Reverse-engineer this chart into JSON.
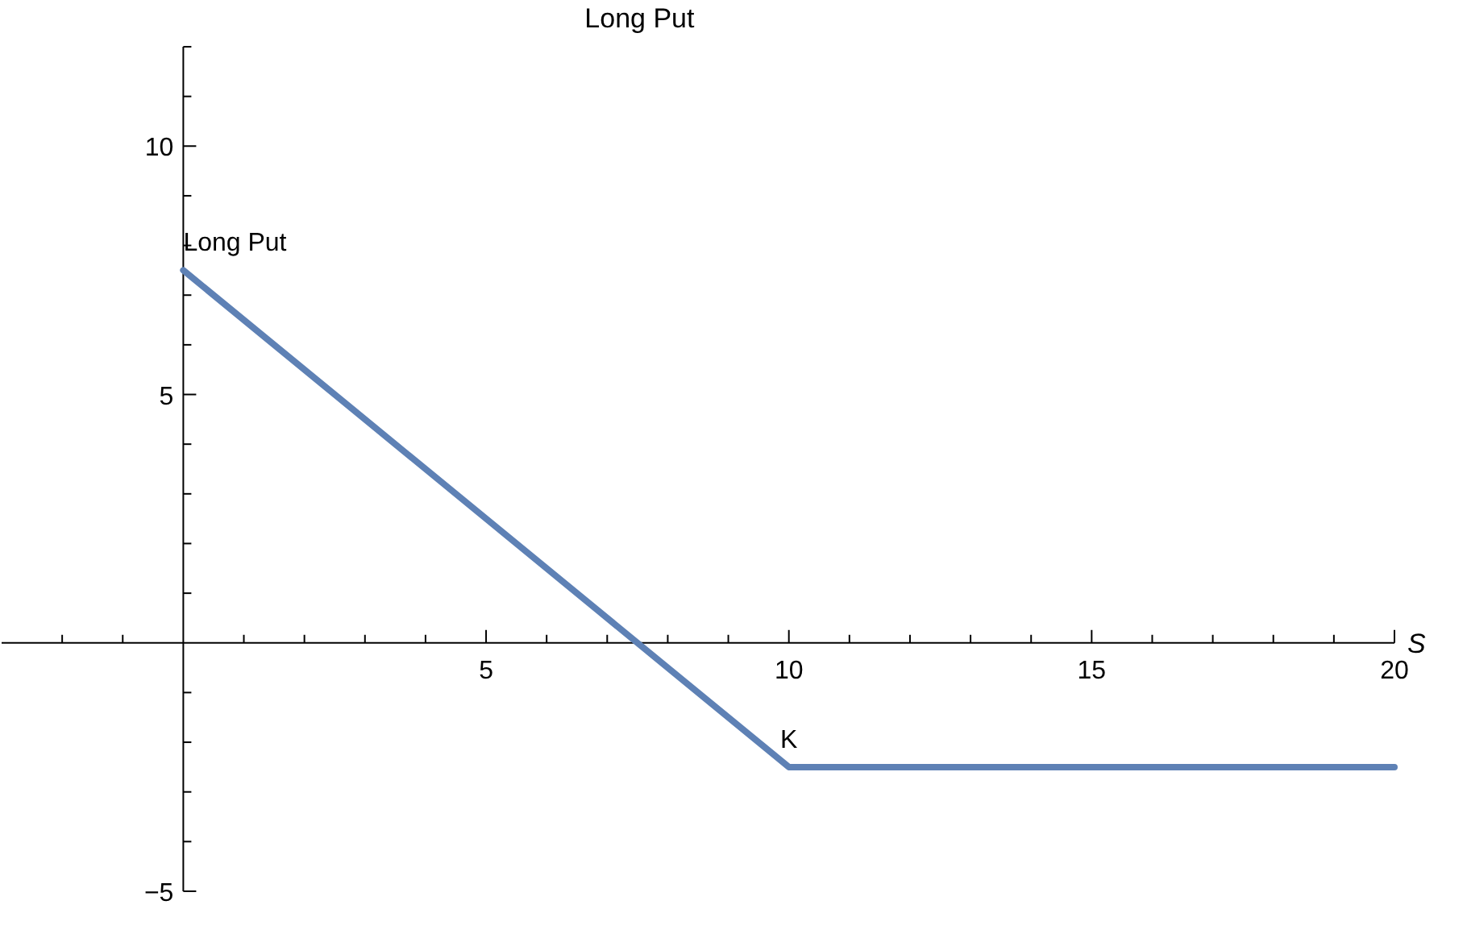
{
  "chart_data": {
    "type": "line",
    "title": "Long Put",
    "xlabel": "S",
    "x": [
      0,
      10,
      20
    ],
    "series": [
      {
        "color": "#5e81b5",
        "values": [
          7.5,
          -2.5,
          -2.5
        ]
      }
    ],
    "xlim": [
      -3,
      20
    ],
    "xticks": [
      {
        "value": -2,
        "label": null
      },
      {
        "value": -1,
        "label": null
      },
      {
        "value": 1,
        "label": null
      },
      {
        "value": 2,
        "label": null
      },
      {
        "value": 3,
        "label": null
      },
      {
        "value": 4,
        "label": null
      },
      5,
      {
        "value": 6,
        "label": null
      },
      {
        "value": 7,
        "label": null
      },
      {
        "value": 8,
        "label": null
      },
      {
        "value": 9,
        "label": null
      },
      10,
      {
        "value": 11,
        "label": null
      },
      {
        "value": 12,
        "label": null
      },
      {
        "value": 13,
        "label": null
      },
      {
        "value": 14,
        "label": null
      },
      15,
      {
        "value": 16,
        "label": null
      },
      {
        "value": 17,
        "label": null
      },
      {
        "value": 18,
        "label": null
      },
      {
        "value": 19,
        "label": null
      },
      20
    ],
    "ylim": [
      -5,
      12
    ],
    "yticks": [
      {
        "value": -5,
        "label": "−5"
      },
      {
        "value": -4,
        "label": null
      },
      {
        "value": -3,
        "label": null
      },
      {
        "value": -2,
        "label": null
      },
      {
        "value": -1,
        "label": null
      },
      {
        "value": 1,
        "label": null
      },
      {
        "value": 2,
        "label": null
      },
      {
        "value": 3,
        "label": null
      },
      {
        "value": 4,
        "label": null
      },
      5,
      {
        "value": 6,
        "label": null
      },
      {
        "value": 7,
        "label": null
      },
      {
        "value": 8,
        "label": null
      },
      {
        "value": 9,
        "label": null
      },
      10,
      {
        "value": 11,
        "label": null
      },
      {
        "value": 12,
        "label": null
      }
    ],
    "annotations": [
      {
        "text": "Long Put",
        "x": 0,
        "y": 7.5
      },
      {
        "text": "K",
        "x": 10,
        "y": -2.5
      }
    ],
    "grid": false,
    "marker": "none",
    "line_style": "solid"
  }
}
